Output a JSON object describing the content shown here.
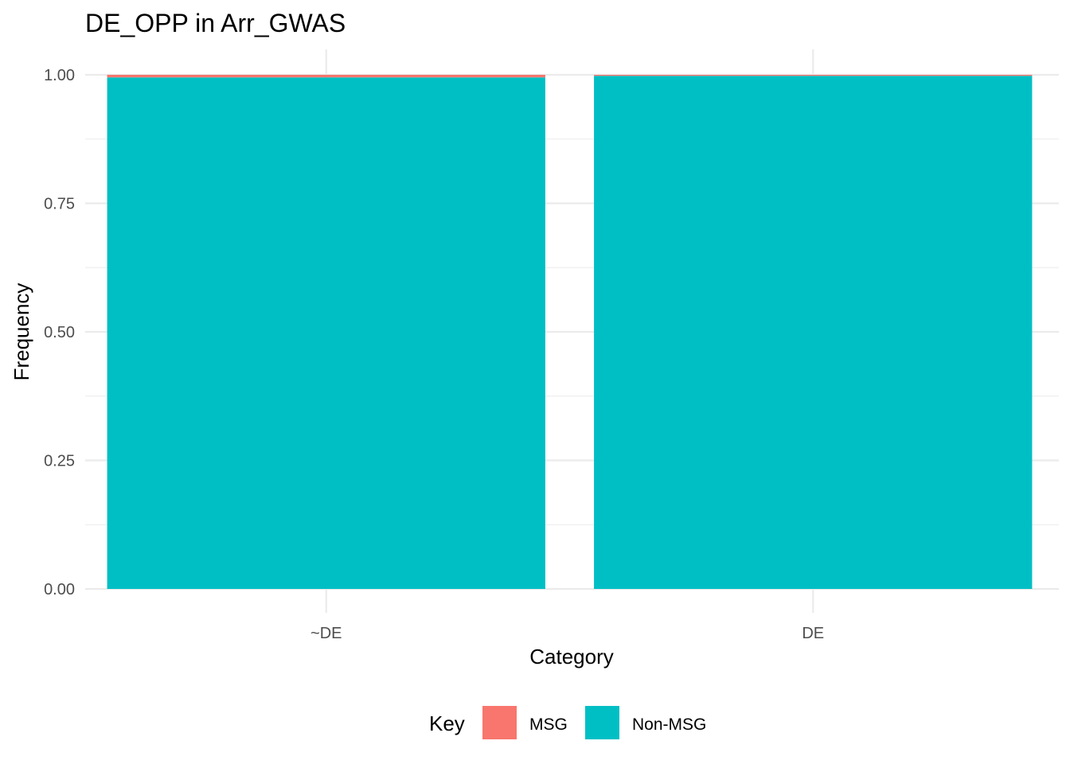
{
  "chart_data": {
    "type": "bar",
    "stacked": true,
    "title": "DE_OPP in Arr_GWAS",
    "xlabel": "Category",
    "ylabel": "Frequency",
    "categories": [
      "~DE",
      "DE"
    ],
    "series": [
      {
        "name": "MSG",
        "values": [
          0.005,
          0.002
        ],
        "color": "#F8766D"
      },
      {
        "name": "Non-MSG",
        "values": [
          0.995,
          0.998
        ],
        "color": "#00BFC4"
      }
    ],
    "ylim": [
      0,
      1
    ],
    "yticks": [
      "0.00",
      "0.25",
      "0.50",
      "0.75",
      "1.00"
    ],
    "ytick_values": [
      0,
      0.25,
      0.5,
      0.75,
      1.0
    ],
    "grid": true,
    "legend": {
      "title": "Key",
      "position": "bottom",
      "items": [
        "MSG",
        "Non-MSG"
      ]
    }
  }
}
